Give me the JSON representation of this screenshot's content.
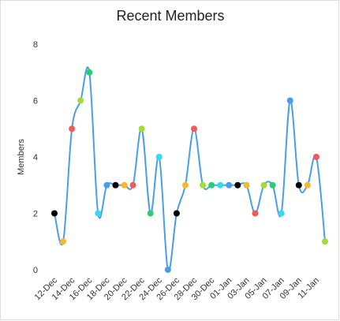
{
  "chart_data": {
    "type": "line",
    "title": "Recent Members",
    "y_label": "Members",
    "categories": [
      "12-Dec",
      null,
      "14-Dec",
      null,
      "16-Dec",
      null,
      "18-Dec",
      null,
      "20-Dec",
      null,
      "22-Dec",
      null,
      "24-Dec",
      null,
      "26-Dec",
      null,
      "28-Dec",
      null,
      "30-Dec",
      null,
      "01-Jan",
      null,
      "03-Jan",
      null,
      "05-Jan",
      null,
      "07-Jan",
      null,
      "09-Jan",
      null,
      "11-Jan",
      null
    ],
    "series": [
      {
        "name": "Members",
        "color": "#4a9ee8",
        "values": [
          2,
          1,
          5,
          6,
          7,
          2,
          3,
          3,
          3,
          3,
          5,
          2,
          4,
          0,
          2,
          3,
          5,
          3,
          3,
          3,
          3,
          3,
          3,
          2,
          3,
          3,
          2,
          6,
          3,
          3,
          4,
          1
        ]
      }
    ],
    "marker_colors": [
      "#000000",
      "#f5b82e",
      "#ef5a5a",
      "#a6d93a",
      "#2ecc71",
      "#3ad7f0",
      "#4a9ee8"
    ],
    "ylim": [
      0,
      8
    ],
    "yticks": [
      0,
      2,
      4,
      6,
      8
    ],
    "grid": false
  }
}
